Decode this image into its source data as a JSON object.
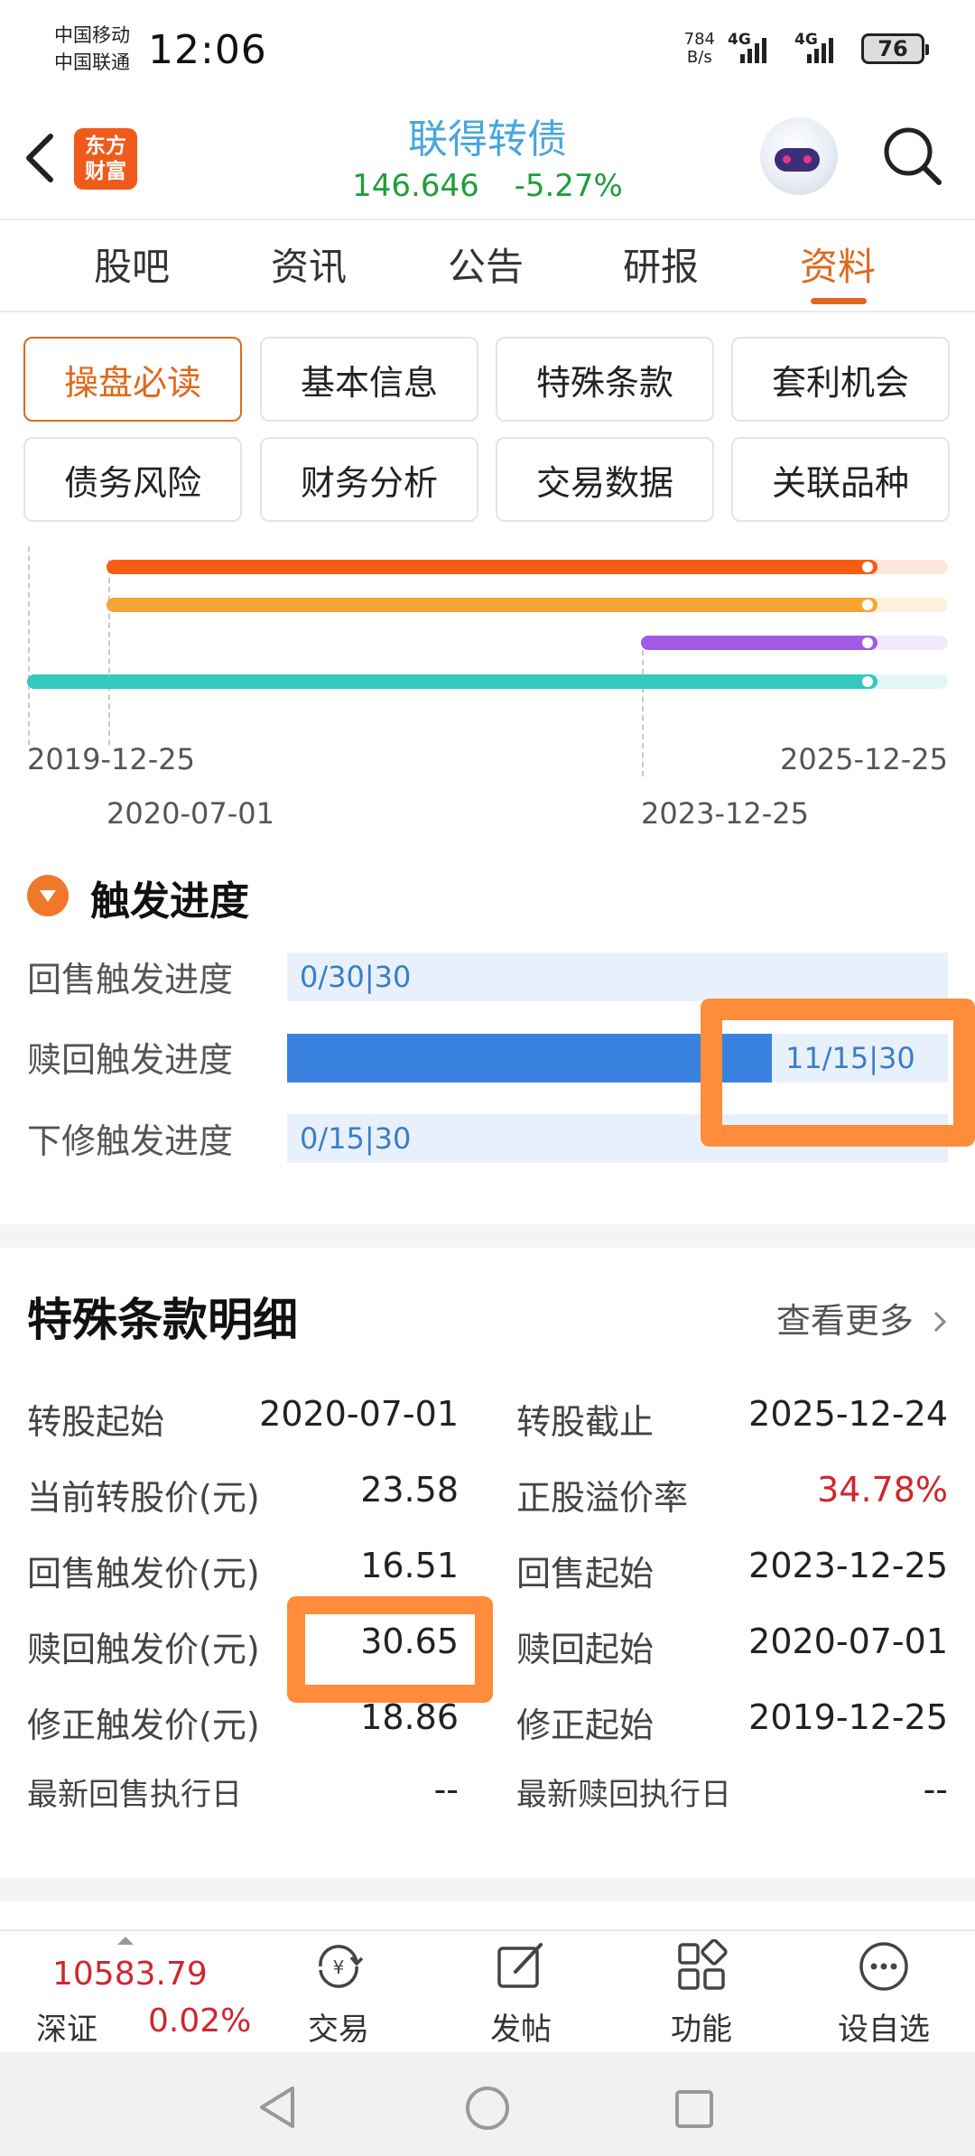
{
  "status_bar": {
    "carrier_1": "中国移动",
    "carrier_2": "中国联通",
    "time": "12:06",
    "speed_value": "784",
    "speed_unit": "B/s",
    "net_1": "4G",
    "net_2": "4G",
    "battery": "76"
  },
  "header": {
    "logo_line1": "东方",
    "logo_line2": "财富",
    "title": "联得转债",
    "price": "146.646",
    "change": "-5.27%",
    "price_color": "#1e9e3a"
  },
  "tabs": [
    "股吧",
    "资讯",
    "公告",
    "研报",
    "资料"
  ],
  "active_tab": "资料",
  "sub_buttons": [
    "操盘必读",
    "基本信息",
    "特殊条款",
    "套利机会",
    "债务风险",
    "财务分析",
    "交易数据",
    "关联品种"
  ],
  "timeline": {
    "start_date": "2019-12-25",
    "end_date": "2025-12-25",
    "conversion_start": "2020-07-01",
    "putback_start": "2023-12-25",
    "colors": [
      "#f75d11",
      "#f5a532",
      "#a35ae6",
      "#33c8c0"
    ]
  },
  "trigger_section": {
    "title": "触发进度",
    "rows": [
      {
        "label": "回售触发进度",
        "text": "0/30|30",
        "progress": 0.0
      },
      {
        "label": "赎回触发进度",
        "text": "11/15|30",
        "progress": 0.733
      },
      {
        "label": "下修触发进度",
        "text": "0/15|30",
        "progress": 0.0
      }
    ]
  },
  "detail_section": {
    "title": "特殊条款明细",
    "more": "查看更多",
    "rows": [
      {
        "l_label": "转股起始",
        "l_val": "2020-07-01",
        "r_label": "转股截止",
        "r_val": "2025-12-24"
      },
      {
        "l_label": "当前转股价(元)",
        "l_val": "23.58",
        "r_label": "正股溢价率",
        "r_val": "34.78%"
      },
      {
        "l_label": "回售触发价(元)",
        "l_val": "16.51",
        "r_label": "回售起始",
        "r_val": "2023-12-25"
      },
      {
        "l_label": "赎回触发价(元)",
        "l_val": "30.65",
        "r_label": "赎回起始",
        "r_val": "2020-07-01"
      },
      {
        "l_label": "修正触发价(元)",
        "l_val": "18.86",
        "r_label": "修正起始",
        "r_val": "2019-12-25"
      },
      {
        "l_label": "最新回售执行日",
        "l_val": "--",
        "r_label": "最新赎回执行日",
        "r_val": "--"
      }
    ],
    "premium_color": "#d0262c"
  },
  "bottom_bar": {
    "index_value": "10583.79",
    "index_name": "深证",
    "index_change": "0.02%",
    "items": [
      "交易",
      "发帖",
      "功能",
      "设自选"
    ]
  },
  "accent_color": "#e0681c"
}
